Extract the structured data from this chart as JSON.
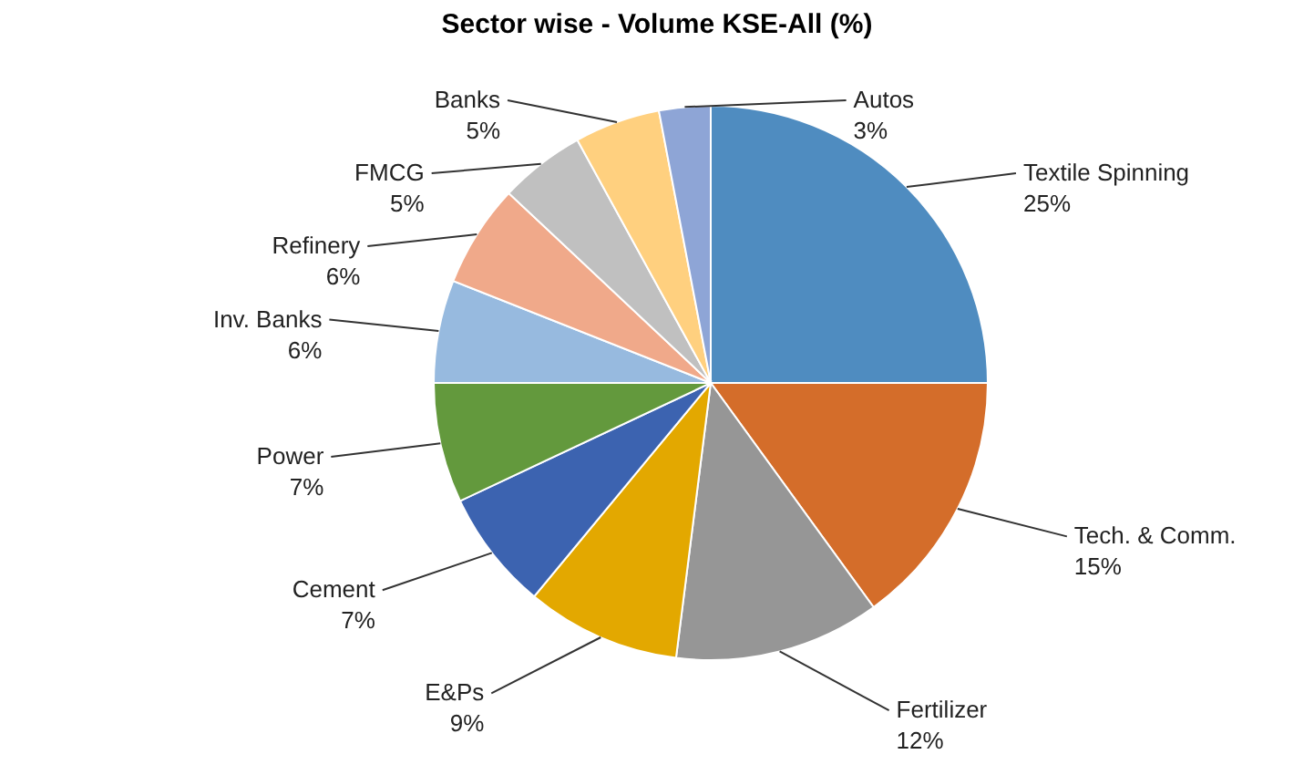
{
  "chart_data": {
    "type": "pie",
    "title": "Sector wise - Volume KSE-All (%)",
    "categories": [
      "Textile Spinning",
      "Tech. & Comm.",
      "Fertilizer",
      "E&Ps",
      "Cement",
      "Power",
      "Inv. Banks",
      "Refinery",
      "FMCG",
      "Banks",
      "Autos"
    ],
    "values": [
      25,
      15,
      12,
      9,
      7,
      7,
      6,
      6,
      5,
      5,
      3
    ],
    "value_labels": [
      "25%",
      "15%",
      "12%",
      "9%",
      "7%",
      "7%",
      "6%",
      "6%",
      "5%",
      "5%",
      "3%"
    ],
    "colors": [
      "#4f8cc0",
      "#d46d2a",
      "#969696",
      "#e3a800",
      "#3c63b0",
      "#63993d",
      "#97badf",
      "#f0a98a",
      "#c0c0c0",
      "#ffd07f",
      "#8ea5d6"
    ],
    "legend": false
  }
}
